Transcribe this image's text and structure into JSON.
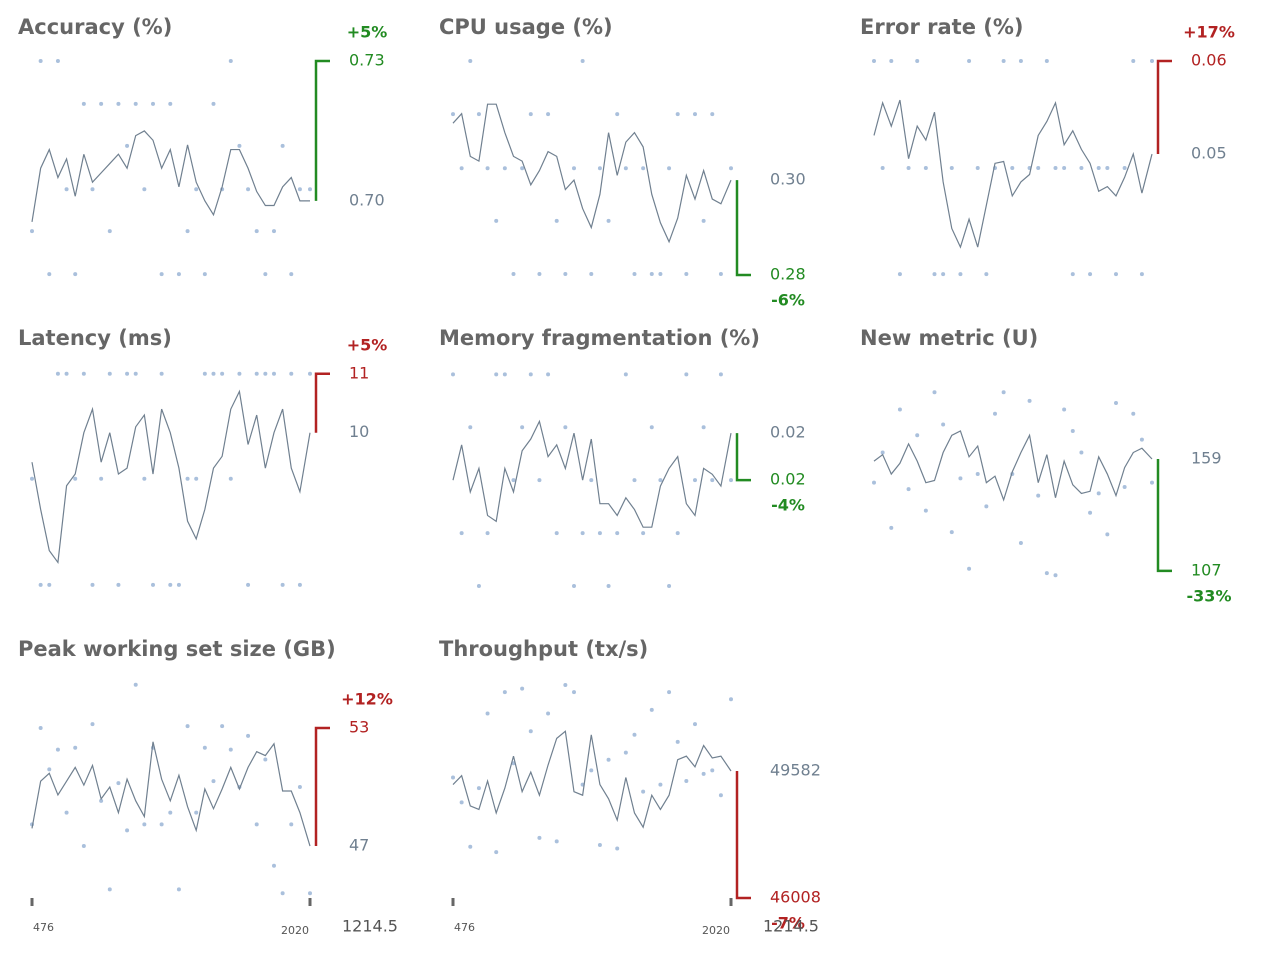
{
  "chart_data": {
    "type": "small_multiples",
    "x": [
      476,
      524,
      572,
      620,
      668,
      716,
      764,
      812,
      860,
      908,
      956,
      1004,
      1052,
      1100,
      1148,
      1196,
      1244,
      1292,
      1340,
      1388,
      1436,
      1484,
      1532,
      1580,
      1628,
      1676,
      1724,
      1772,
      1820,
      1868,
      1916,
      1964,
      2020
    ],
    "xlim": [
      476,
      2020
    ],
    "xticks": [
      476,
      2020
    ],
    "xlabel": "1214.5",
    "line_color": "#708090",
    "point_color": "#aac0dc",
    "panels": [
      {
        "title": "Accuracy (%)",
        "ylim": [
          0.6841,
          0.73
        ],
        "color": "#228b22",
        "line": [
          0.6955,
          0.707,
          0.711,
          0.705,
          0.709,
          0.701,
          0.71,
          0.704,
          0.706,
          0.708,
          0.71,
          0.707,
          0.714,
          0.715,
          0.713,
          0.707,
          0.711,
          0.703,
          0.712,
          0.704,
          0.7,
          0.697,
          0.703,
          0.711,
          0.711,
          0.707,
          0.702,
          0.699,
          0.699,
          0.703,
          0.705,
          0.7,
          0.7
        ],
        "points": [
          0.6935,
          0.73,
          0.6843,
          0.73,
          0.7025,
          0.6843,
          0.7208,
          0.7025,
          0.7208,
          0.6935,
          0.7208,
          0.7118,
          0.7208,
          0.7025,
          0.7208,
          0.6843,
          0.7208,
          0.6843,
          0.6935,
          0.7025,
          0.6843,
          0.7208,
          0.7025,
          0.73,
          0.7118,
          0.7025,
          0.6935,
          0.6843,
          0.6935,
          0.7118,
          0.6843,
          0.7025,
          0.7025
        ],
        "last": {
          "value": 0.7,
          "label": "0.70"
        },
        "reference": 0.73,
        "change": {
          "value": 5,
          "label": "+5%"
        }
      },
      {
        "title": "CPU usage (%)",
        "ylim": [
          0.28,
          0.3251
        ],
        "color": "#228b22",
        "line": [
          0.312,
          0.314,
          0.305,
          0.304,
          0.316,
          0.316,
          0.31,
          0.305,
          0.304,
          0.299,
          0.302,
          0.306,
          0.305,
          0.298,
          0.3,
          0.294,
          0.29,
          0.297,
          0.31,
          0.301,
          0.308,
          0.31,
          0.307,
          0.297,
          0.291,
          0.287,
          0.292,
          0.301,
          0.296,
          0.302,
          0.296,
          0.295,
          0.3
        ],
        "points": [
          0.3139,
          0.3025,
          0.3251,
          0.3139,
          0.3025,
          0.2914,
          0.3025,
          0.2802,
          0.3025,
          0.3139,
          0.2802,
          0.3139,
          0.2914,
          0.2802,
          0.3025,
          0.3251,
          0.2802,
          0.3025,
          0.2914,
          0.3139,
          0.3025,
          0.2802,
          0.3025,
          0.2802,
          0.2802,
          0.3025,
          0.3139,
          0.2802,
          0.3139,
          0.2914,
          0.3139,
          0.2802,
          0.3025
        ],
        "last": {
          "value": 0.3,
          "label": "0.30"
        },
        "reference": 0.28,
        "change": {
          "value": -6,
          "label": "-6%"
        }
      },
      {
        "title": "Error rate (%)",
        "ylim": [
          0.037,
          0.06
        ],
        "color": "#b22222",
        "line": [
          0.052,
          0.0555,
          0.053,
          0.0558,
          0.0495,
          0.053,
          0.0515,
          0.0545,
          0.047,
          0.042,
          0.04,
          0.043,
          0.04,
          0.0445,
          0.049,
          0.0492,
          0.0455,
          0.047,
          0.0478,
          0.052,
          0.0535,
          0.0555,
          0.051,
          0.0525,
          0.0505,
          0.049,
          0.046,
          0.0465,
          0.0455,
          0.0475,
          0.05,
          0.0458,
          0.05
        ],
        "points": [
          0.06,
          0.0485,
          0.06,
          0.0371,
          0.0485,
          0.06,
          0.0485,
          0.0371,
          0.0371,
          0.0485,
          0.0371,
          0.06,
          0.0485,
          0.0371,
          0.0485,
          0.06,
          0.0485,
          0.06,
          0.0485,
          0.0485,
          0.06,
          0.0485,
          0.0485,
          0.0371,
          0.0485,
          0.0371,
          0.0485,
          0.0485,
          0.0371,
          0.0485,
          0.06,
          0.0371,
          0.06
        ],
        "last": 0.05,
        "reference": 0.06,
        "change": {
          "value": 17,
          "label": "+17%"
        }
      },
      {
        "title": "Latency (ms)",
        "ylim": [
          7.4,
          11.03
        ],
        "color": "#b22222",
        "line": [
          9.5,
          8.7,
          8.0,
          7.8,
          9.1,
          9.3,
          10.0,
          10.4,
          9.5,
          10.0,
          9.3,
          9.4,
          10.1,
          10.3,
          9.3,
          10.4,
          10.0,
          9.4,
          8.5,
          8.2,
          8.7,
          9.4,
          9.6,
          10.4,
          10.7,
          9.8,
          10.3,
          9.4,
          10.0,
          10.4,
          9.4,
          9.0,
          10
        ],
        "points": [
          9.22,
          7.42,
          7.42,
          11,
          11,
          9.22,
          11,
          7.42,
          9.22,
          11,
          7.42,
          11,
          11,
          9.22,
          7.42,
          11,
          7.42,
          7.42,
          9.22,
          9.22,
          11,
          11,
          11,
          9.22,
          11,
          7.42,
          11,
          11,
          11,
          7.42,
          11,
          7.42,
          11
        ],
        "last": 10,
        "reference": 11,
        "change": {
          "value": 5,
          "label": "+5%"
        }
      },
      {
        "title": "Memory fragmentation (%)",
        "ylim": [
          0.0174,
          0.02104
        ],
        "color": "#228b22",
        "line": [
          0.0192,
          0.0198,
          0.019,
          0.0194,
          0.0186,
          0.0185,
          0.0194,
          0.019,
          0.0197,
          0.0199,
          0.0202,
          0.0196,
          0.0198,
          0.0194,
          0.02,
          0.0192,
          0.0199,
          0.0188,
          0.0188,
          0.0186,
          0.0189,
          0.0187,
          0.0184,
          0.0184,
          0.0191,
          0.0194,
          0.0196,
          0.0188,
          0.0186,
          0.0194,
          0.0193,
          0.0191,
          0.02
        ],
        "points": [
          0.021,
          0.0183,
          0.0201,
          0.0174,
          0.0183,
          0.021,
          0.021,
          0.0192,
          0.0201,
          0.021,
          0.0192,
          0.021,
          0.0183,
          0.0201,
          0.0174,
          0.0183,
          0.0192,
          0.0183,
          0.0174,
          0.0183,
          0.021,
          0.0192,
          0.0183,
          0.0201,
          0.0192,
          0.0174,
          0.0183,
          0.021,
          0.0192,
          0.0201,
          0.0192,
          0.021,
          0.0192
        ],
        "last": 0.02,
        "reference": {
          "value": 0.0192,
          "label": "0.02"
        },
        "change": {
          "value": -4,
          "label": "-4%"
        }
      },
      {
        "title": "New metric (U)",
        "ylim": [
          100,
          199.4
        ],
        "color": "#228b22",
        "line": [
          158,
          161,
          152,
          157,
          166,
          158,
          148,
          149,
          162,
          170,
          172,
          160,
          165,
          148,
          151,
          140,
          153,
          162,
          170,
          148,
          161,
          141,
          158,
          147,
          143,
          144,
          160,
          152,
          142,
          155,
          162,
          164,
          159
        ],
        "points": [
          148,
          162,
          127,
          182,
          145,
          170,
          135,
          190,
          175,
          125,
          150,
          108,
          152,
          137,
          180,
          190,
          152,
          120,
          186,
          142,
          106,
          105,
          182,
          172,
          162,
          134,
          143,
          124,
          185,
          146,
          180,
          168,
          148
        ],
        "last": 159,
        "reference": 107,
        "change": {
          "value": -33,
          "label": "-33%"
        }
      },
      {
        "title": "Peak working set size (GB)",
        "ylim": [
          44.41,
          55.29
        ],
        "color": "#b22222",
        "line": [
          47.9,
          50.3,
          50.7,
          49.6,
          50.3,
          51.0,
          50.1,
          51.1,
          49.4,
          50.0,
          48.7,
          50.4,
          49.3,
          48.5,
          52.3,
          50.4,
          49.3,
          50.6,
          49.0,
          47.8,
          49.9,
          48.9,
          49.9,
          51.0,
          49.9,
          51.0,
          51.8,
          51.6,
          52.2,
          49.8,
          49.8,
          48.7,
          47
        ],
        "points": [
          48.1,
          53.0,
          50.9,
          51.9,
          48.7,
          52.0,
          47.0,
          53.2,
          49.3,
          44.8,
          50.2,
          47.8,
          55.2,
          48.1,
          52.0,
          48.1,
          48.7,
          44.8,
          53.1,
          48.7,
          52.0,
          50.3,
          53.1,
          51.9,
          50.0,
          52.6,
          48.1,
          51.4,
          46.0,
          44.6,
          48.1,
          50.0,
          44.6
        ],
        "last": 47,
        "reference": 53,
        "change": {
          "value": 12,
          "label": "+12%"
        }
      },
      {
        "title": "Throughput (tx/s)",
        "ylim": [
          46036,
          52058
        ],
        "color": "#b22222",
        "line": [
          49200,
          49450,
          48600,
          48500,
          49300,
          48400,
          49100,
          50000,
          49000,
          49550,
          48900,
          49750,
          50500,
          50700,
          49000,
          48900,
          50600,
          49200,
          48800,
          48200,
          49400,
          48400,
          48000,
          48900,
          48500,
          48900,
          49900,
          50000,
          49700,
          50300,
          49950,
          50000,
          49582
        ],
        "points": [
          49400,
          48700,
          47450,
          49100,
          51200,
          47300,
          51800,
          49800,
          51900,
          50700,
          47700,
          51200,
          47600,
          52000,
          51800,
          49200,
          49600,
          47500,
          49900,
          47400,
          50100,
          50600,
          49000,
          51300,
          49200,
          51800,
          50400,
          49300,
          50900,
          49500,
          49600,
          48900,
          51600
        ],
        "last": 49582,
        "reference": 46008,
        "change": {
          "value": -7,
          "label": "-7%"
        }
      }
    ]
  }
}
